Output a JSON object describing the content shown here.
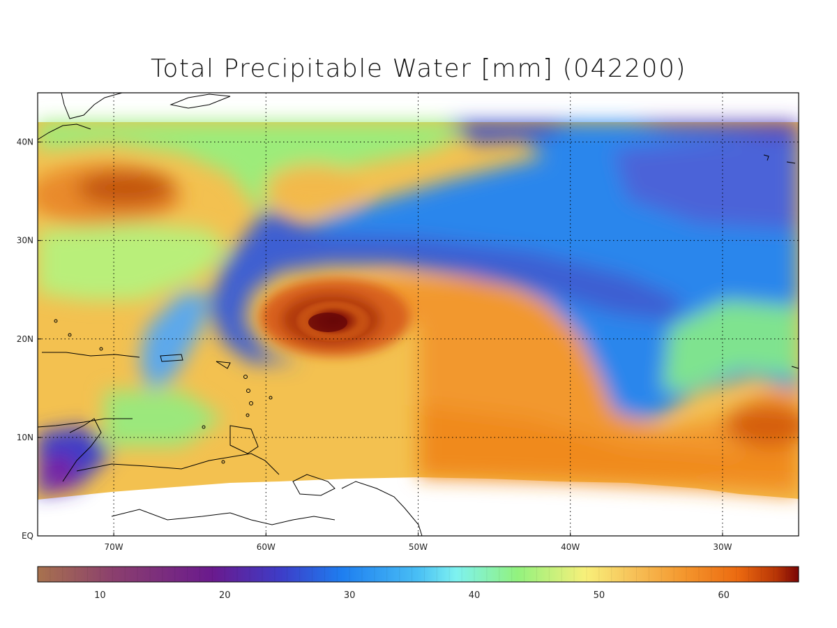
{
  "title": "Total Precipitable Water [mm]  (042200)",
  "map": {
    "lat_labels": [
      "40N",
      "30N",
      "20N",
      "10N",
      "EQ"
    ],
    "lon_labels": [
      "70W",
      "60W",
      "50W",
      "40W",
      "30W"
    ],
    "lat_values": [
      40,
      30,
      20,
      10,
      0
    ],
    "lon_values": [
      -70,
      -60,
      -50,
      -40,
      -30
    ],
    "extent": {
      "lon_min": -75,
      "lon_max": -25,
      "lat_min": 0,
      "lat_max": 45
    },
    "data_extent": {
      "lat_max": 42,
      "lat_min_approx": 4
    },
    "grid": "dotted",
    "features": [
      "hurricane eye near 21N 55W",
      "dry tongue (blue) 25-35N",
      "moist tropical band (orange)"
    ]
  },
  "colorbar": {
    "labels": [
      "10",
      "20",
      "30",
      "40",
      "50",
      "60"
    ],
    "min": 5,
    "max": 66,
    "colors": [
      "#a8724e",
      "#8b3f6e",
      "#6a1a8e",
      "#3d3dc8",
      "#1e7ef0",
      "#49bff5",
      "#7ef2f0",
      "#92f27e",
      "#f8f07a",
      "#f7c35a",
      "#f4962d",
      "#ec6a10",
      "#b83506",
      "#7a0505"
    ]
  }
}
